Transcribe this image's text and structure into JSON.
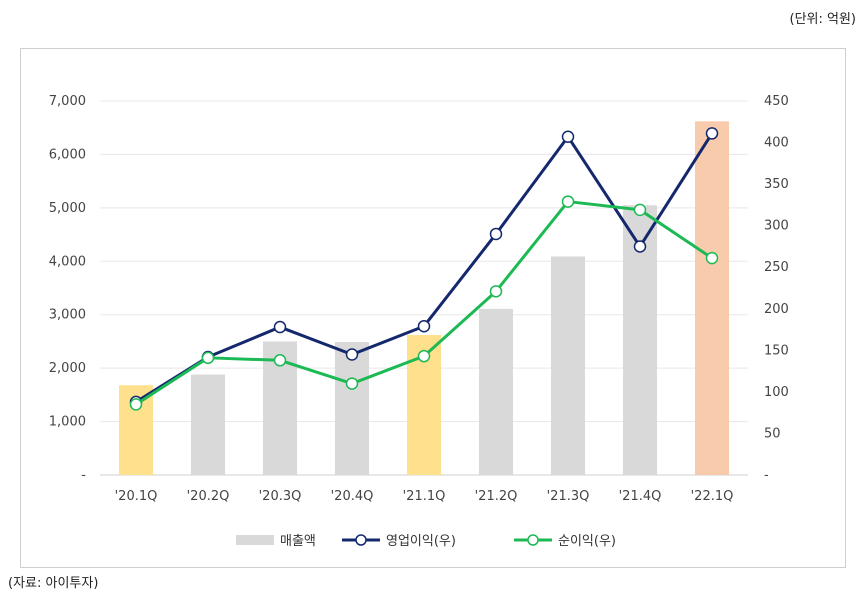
{
  "unit_label": "(단위: 억원)",
  "source_label": "(자료: 아이투자)",
  "chart_data": {
    "type": "bar",
    "categories": [
      "'20.1Q",
      "'20.2Q",
      "'20.3Q",
      "'20.4Q",
      "'21.1Q",
      "'21.2Q",
      "'21.3Q",
      "'21.4Q",
      "'22.1Q"
    ],
    "left_axis": {
      "min": 0,
      "max": 7000,
      "ticks": [
        0,
        1000,
        2000,
        3000,
        4000,
        5000,
        6000,
        7000
      ],
      "tick_labels": [
        "-",
        "1,000",
        "2,000",
        "3,000",
        "4,000",
        "5,000",
        "6,000",
        "7,000"
      ]
    },
    "right_axis": {
      "min": 0,
      "max": 450,
      "ticks": [
        0,
        50,
        100,
        150,
        200,
        250,
        300,
        350,
        400,
        450
      ],
      "tick_labels": [
        "-",
        "50",
        "100",
        "150",
        "200",
        "250",
        "300",
        "350",
        "400",
        "450"
      ]
    },
    "series": [
      {
        "name": "매출액",
        "kind": "bar",
        "axis": "left",
        "values": [
          1680,
          1880,
          2500,
          2490,
          2620,
          3110,
          4090,
          5050,
          6620
        ],
        "colors": [
          "#FFE08C",
          "#D9D9D9",
          "#D9D9D9",
          "#D9D9D9",
          "#FFE08C",
          "#D9D9D9",
          "#D9D9D9",
          "#D9D9D9",
          "#F8CBAD"
        ]
      },
      {
        "name": "영업이익(우)",
        "kind": "line",
        "axis": "right",
        "color": "#14286E",
        "values": [
          88,
          142,
          178,
          145,
          179,
          290,
          407,
          275,
          411
        ]
      },
      {
        "name": "순이익(우)",
        "kind": "line",
        "axis": "right",
        "color": "#1DB954",
        "values": [
          85,
          141,
          138,
          110,
          143,
          221,
          329,
          319,
          261
        ]
      }
    ],
    "legend_position": "bottom",
    "grid": true
  }
}
